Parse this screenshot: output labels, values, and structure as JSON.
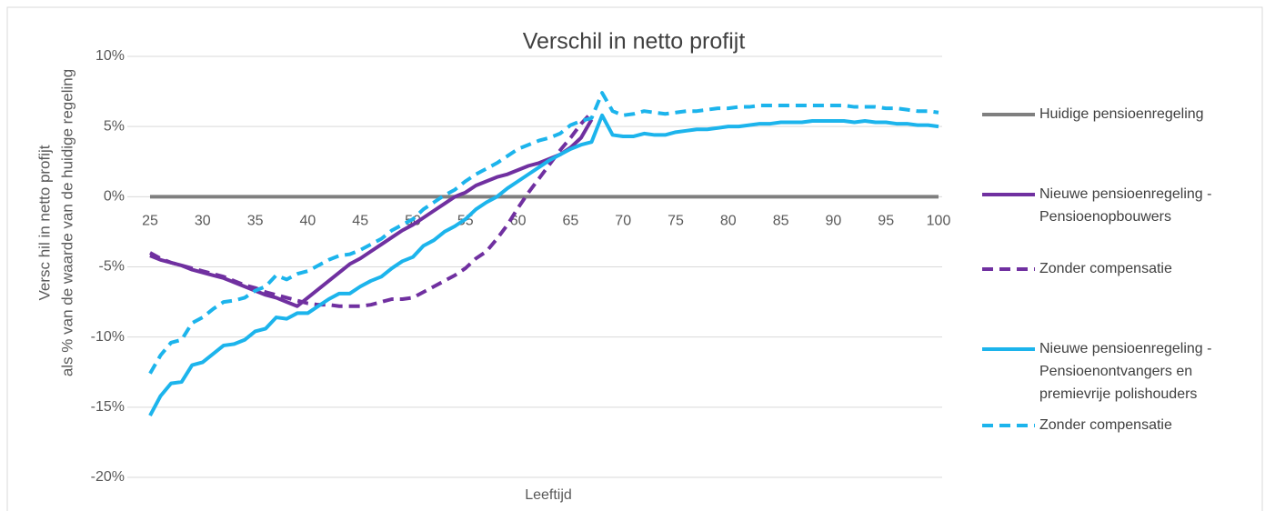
{
  "chart_data": {
    "type": "line",
    "title": "Verschil in netto profijt",
    "x_label": "Leeftijd",
    "y_label": [
      "Versc hil in netto profijt",
      "als % van de waarde van de huidige regeling"
    ],
    "x": [
      25,
      26,
      27,
      28,
      29,
      30,
      31,
      32,
      33,
      34,
      35,
      36,
      37,
      38,
      39,
      40,
      41,
      42,
      43,
      44,
      45,
      46,
      47,
      48,
      49,
      50,
      51,
      52,
      53,
      54,
      55,
      56,
      57,
      58,
      59,
      60,
      61,
      62,
      63,
      64,
      65,
      66,
      67,
      68,
      69,
      70,
      71,
      72,
      73,
      74,
      75,
      76,
      77,
      78,
      79,
      80,
      81,
      82,
      83,
      84,
      85,
      86,
      87,
      88,
      89,
      90,
      91,
      92,
      93,
      94,
      95,
      96,
      97,
      98,
      99,
      100
    ],
    "xlim": [
      25,
      100
    ],
    "xticks": [
      25,
      30,
      35,
      40,
      45,
      50,
      55,
      60,
      65,
      70,
      75,
      80,
      85,
      90,
      95,
      100
    ],
    "ylim": [
      -20,
      10
    ],
    "yticks": [
      {
        "value": -20,
        "label": "-20%"
      },
      {
        "value": -15,
        "label": "-15%"
      },
      {
        "value": -10,
        "label": "-10%"
      },
      {
        "value": -5,
        "label": "-5%"
      },
      {
        "value": 0,
        "label": "0%"
      },
      {
        "value": 5,
        "label": "5%"
      },
      {
        "value": 10,
        "label": "10%"
      }
    ],
    "grid": true,
    "legend": "right",
    "series": [
      {
        "name": "Huidige pensioenregeling",
        "color": "#7f7f7f",
        "dashed": false,
        "values": [
          0,
          0,
          0,
          0,
          0,
          0,
          0,
          0,
          0,
          0,
          0,
          0,
          0,
          0,
          0,
          0,
          0,
          0,
          0,
          0,
          0,
          0,
          0,
          0,
          0,
          0,
          0,
          0,
          0,
          0,
          0,
          0,
          0,
          0,
          0,
          0,
          0,
          0,
          0,
          0,
          0,
          0,
          0,
          0,
          0,
          0,
          0,
          0,
          0,
          0,
          0,
          0,
          0,
          0,
          0,
          0,
          0,
          0,
          0,
          0,
          0,
          0,
          0,
          0,
          0,
          0,
          0,
          0,
          0,
          0,
          0,
          0,
          0,
          0,
          0,
          0
        ]
      },
      {
        "name": "Nieuwe pensioenregeling - Pensioenopbouwers",
        "color": "#7030a0",
        "dashed": false,
        "values": [
          -4.2,
          -4.5,
          -4.7,
          -4.9,
          -5.2,
          -5.4,
          -5.6,
          -5.8,
          -6.1,
          -6.4,
          -6.7,
          -7.0,
          -7.2,
          -7.5,
          -7.8,
          -7.2,
          -6.6,
          -6.0,
          -5.4,
          -4.8,
          -4.4,
          -3.9,
          -3.4,
          -2.9,
          -2.4,
          -2.0,
          -1.5,
          -1.0,
          -0.5,
          0.0,
          0.3,
          0.8,
          1.1,
          1.4,
          1.6,
          1.9,
          2.2,
          2.4,
          2.7,
          3.0,
          3.5,
          4.2,
          5.5,
          null,
          null,
          null,
          null,
          null,
          null,
          null,
          null,
          null,
          null,
          null,
          null,
          null,
          null,
          null,
          null,
          null,
          null,
          null,
          null,
          null,
          null,
          null,
          null,
          null,
          null,
          null,
          null,
          null,
          null,
          null,
          null,
          null
        ]
      },
      {
        "name": "Zonder compensatie",
        "color": "#7030a0",
        "dashed": true,
        "values": [
          -4.0,
          -4.4,
          -4.7,
          -4.9,
          -5.1,
          -5.3,
          -5.5,
          -5.7,
          -6.0,
          -6.3,
          -6.5,
          -6.8,
          -7.0,
          -7.2,
          -7.4,
          -7.6,
          -7.7,
          -7.7,
          -7.8,
          -7.8,
          -7.8,
          -7.7,
          -7.5,
          -7.3,
          -7.3,
          -7.2,
          -6.8,
          -6.4,
          -6.0,
          -5.6,
          -5.1,
          -4.4,
          -3.9,
          -3.0,
          -2.0,
          -0.8,
          0.3,
          1.3,
          2.3,
          3.3,
          4.2,
          5.2,
          6.0,
          null,
          null,
          null,
          null,
          null,
          null,
          null,
          null,
          null,
          null,
          null,
          null,
          null,
          null,
          null,
          null,
          null,
          null,
          null,
          null,
          null,
          null,
          null,
          null,
          null,
          null,
          null,
          null,
          null,
          null,
          null,
          null,
          null
        ]
      },
      {
        "name": "Nieuwe pensioenregeling - Pensioenontvangers en premievrije polishouders",
        "color": "#1cb4ec",
        "dashed": false,
        "values": [
          -15.6,
          -14.2,
          -13.3,
          -13.2,
          -12.0,
          -11.8,
          -11.2,
          -10.6,
          -10.5,
          -10.2,
          -9.6,
          -9.4,
          -8.6,
          -8.7,
          -8.3,
          -8.3,
          -7.8,
          -7.3,
          -6.9,
          -6.9,
          -6.4,
          -6.0,
          -5.7,
          -5.1,
          -4.6,
          -4.3,
          -3.5,
          -3.1,
          -2.5,
          -2.1,
          -1.6,
          -0.9,
          -0.4,
          0.0,
          0.6,
          1.1,
          1.6,
          2.1,
          2.6,
          3.0,
          3.4,
          3.7,
          3.9,
          5.8,
          4.4,
          4.3,
          4.3,
          4.5,
          4.4,
          4.4,
          4.6,
          4.7,
          4.8,
          4.8,
          4.9,
          5.0,
          5.0,
          5.1,
          5.2,
          5.2,
          5.3,
          5.3,
          5.3,
          5.4,
          5.4,
          5.4,
          5.4,
          5.3,
          5.4,
          5.3,
          5.3,
          5.2,
          5.2,
          5.1,
          5.1,
          5.0
        ]
      },
      {
        "name": "Zonder compensatie",
        "color": "#1cb4ec",
        "dashed": true,
        "values": [
          -12.6,
          -11.3,
          -10.4,
          -10.2,
          -9.0,
          -8.6,
          -8.0,
          -7.5,
          -7.4,
          -7.2,
          -6.7,
          -6.4,
          -5.6,
          -5.9,
          -5.5,
          -5.3,
          -4.9,
          -4.5,
          -4.2,
          -4.1,
          -3.8,
          -3.4,
          -3.0,
          -2.4,
          -2.0,
          -1.6,
          -0.9,
          -0.4,
          0.1,
          0.5,
          1.1,
          1.6,
          2.0,
          2.4,
          2.9,
          3.4,
          3.7,
          4.0,
          4.2,
          4.5,
          5.1,
          5.4,
          5.6,
          7.4,
          6.1,
          5.8,
          5.9,
          6.1,
          6.0,
          5.9,
          6.0,
          6.1,
          6.1,
          6.2,
          6.3,
          6.3,
          6.4,
          6.4,
          6.5,
          6.5,
          6.5,
          6.5,
          6.5,
          6.5,
          6.5,
          6.5,
          6.5,
          6.4,
          6.4,
          6.4,
          6.3,
          6.3,
          6.2,
          6.1,
          6.1,
          6.0
        ]
      }
    ]
  }
}
